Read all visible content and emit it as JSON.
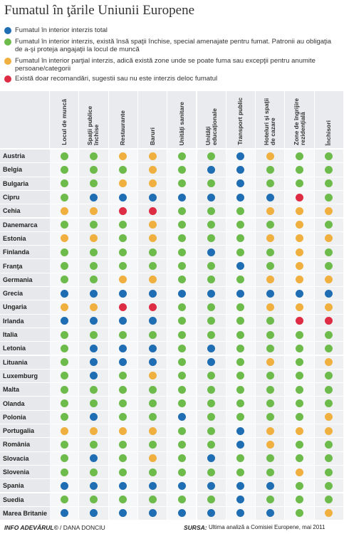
{
  "title": "Fumatul în ţările Uniunii Europene",
  "legend": [
    {
      "color": "#1f6db3",
      "text": "Fumatul în interior interzis total"
    },
    {
      "color": "#6dbb4b",
      "text": "Fumatul în interior interzis, există însă spaţii închise, special amenajate pentru fumat. Patronii au obligaţia de a-şi proteja angajaţii la locul de muncă"
    },
    {
      "color": "#f0b03f",
      "text": "Fumatul în interior parţial interzis, adică există zone unde se poate fuma sau excepţii pentru anumite persoane/categorii"
    },
    {
      "color": "#dd2c44",
      "text": "Există doar recomandări, sugestii sau nu este interzis deloc fumatul"
    }
  ],
  "columns": [
    "Locul de muncă",
    "Spaţii publice închise",
    "Restaurante",
    "Baruri",
    "Unităţi sanitare",
    "Unităţi educaţionale",
    "Transport public",
    "Hoteluri şi spaţii de cazare",
    "Zone de îngrijire rezidenţială",
    "Închisori"
  ],
  "rows": [
    {
      "country": "Austria",
      "cells": [
        1,
        1,
        2,
        2,
        1,
        1,
        0,
        2,
        1,
        1
      ]
    },
    {
      "country": "Belgia",
      "cells": [
        1,
        1,
        1,
        2,
        1,
        0,
        0,
        1,
        1,
        1
      ]
    },
    {
      "country": "Bulgaria",
      "cells": [
        1,
        1,
        2,
        2,
        1,
        1,
        0,
        1,
        1,
        1
      ]
    },
    {
      "country": "Cipru",
      "cells": [
        1,
        0,
        0,
        0,
        0,
        0,
        0,
        0,
        3,
        1
      ]
    },
    {
      "country": "Cehia",
      "cells": [
        2,
        2,
        3,
        3,
        1,
        1,
        1,
        2,
        2,
        2
      ]
    },
    {
      "country": "Danemarca",
      "cells": [
        1,
        1,
        1,
        2,
        1,
        1,
        1,
        1,
        2,
        1
      ]
    },
    {
      "country": "Estonia",
      "cells": [
        2,
        2,
        1,
        2,
        1,
        1,
        1,
        2,
        2,
        2
      ]
    },
    {
      "country": "Finlanda",
      "cells": [
        1,
        1,
        1,
        1,
        1,
        0,
        1,
        1,
        2,
        1
      ]
    },
    {
      "country": "Franţa",
      "cells": [
        1,
        1,
        1,
        1,
        1,
        1,
        0,
        1,
        2,
        1
      ]
    },
    {
      "country": "Germania",
      "cells": [
        1,
        1,
        2,
        2,
        1,
        1,
        1,
        2,
        2,
        2
      ]
    },
    {
      "country": "Grecia",
      "cells": [
        0,
        0,
        0,
        0,
        0,
        0,
        0,
        0,
        0,
        0
      ]
    },
    {
      "country": "Ungaria",
      "cells": [
        2,
        2,
        3,
        3,
        1,
        1,
        1,
        2,
        2,
        2
      ]
    },
    {
      "country": "Irlanda",
      "cells": [
        0,
        0,
        0,
        0,
        1,
        1,
        1,
        1,
        3,
        3
      ]
    },
    {
      "country": "Italia",
      "cells": [
        1,
        1,
        1,
        1,
        1,
        1,
        1,
        1,
        1,
        1
      ]
    },
    {
      "country": "Letonia",
      "cells": [
        1,
        0,
        0,
        0,
        1,
        0,
        1,
        1,
        1,
        1
      ]
    },
    {
      "country": "Lituania",
      "cells": [
        1,
        0,
        0,
        0,
        1,
        0,
        1,
        2,
        1,
        2
      ]
    },
    {
      "country": "Luxemburg",
      "cells": [
        1,
        0,
        1,
        2,
        1,
        1,
        1,
        1,
        1,
        1
      ]
    },
    {
      "country": "Malta",
      "cells": [
        1,
        1,
        1,
        1,
        1,
        1,
        1,
        1,
        1,
        1
      ]
    },
    {
      "country": "Olanda",
      "cells": [
        1,
        1,
        1,
        1,
        1,
        1,
        1,
        1,
        1,
        1
      ]
    },
    {
      "country": "Polonia",
      "cells": [
        1,
        0,
        1,
        1,
        0,
        1,
        1,
        1,
        1,
        2
      ]
    },
    {
      "country": "Portugalia",
      "cells": [
        2,
        2,
        2,
        2,
        1,
        1,
        0,
        2,
        2,
        2
      ]
    },
    {
      "country": "România",
      "cells": [
        1,
        1,
        1,
        1,
        1,
        1,
        0,
        2,
        1,
        1
      ]
    },
    {
      "country": "Slovacia",
      "cells": [
        1,
        0,
        1,
        2,
        1,
        0,
        1,
        1,
        1,
        1
      ]
    },
    {
      "country": "Slovenia",
      "cells": [
        1,
        1,
        1,
        1,
        1,
        1,
        1,
        1,
        2,
        1
      ]
    },
    {
      "country": "Spania",
      "cells": [
        0,
        0,
        0,
        0,
        0,
        0,
        0,
        0,
        1,
        1
      ]
    },
    {
      "country": "Suedia",
      "cells": [
        1,
        1,
        1,
        1,
        1,
        1,
        0,
        1,
        1,
        1
      ]
    },
    {
      "country": "Marea Britanie",
      "cells": [
        0,
        0,
        0,
        0,
        0,
        0,
        0,
        0,
        1,
        2
      ]
    }
  ],
  "footer": {
    "brand": "INFO ADEVĂRUL©",
    "author": "/ DANA DONCIU",
    "source_label": "SURSA:",
    "source": "Ultima analiză a Comisiei Europene, mai 2011"
  }
}
